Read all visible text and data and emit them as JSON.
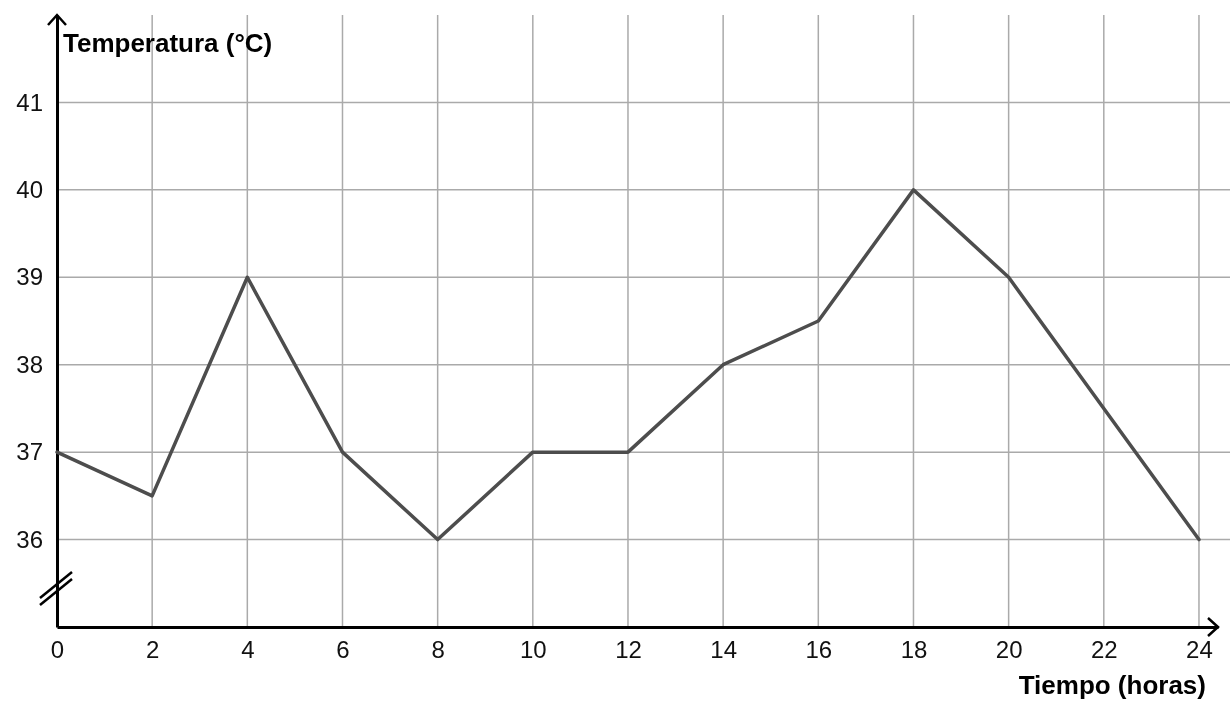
{
  "chart_data": {
    "type": "line",
    "xlabel": "Tiempo (horas)",
    "ylabel": "Temperatura (°C)",
    "x": [
      0,
      2,
      4,
      6,
      8,
      10,
      12,
      14,
      16,
      18,
      20,
      22,
      24
    ],
    "series": [
      {
        "color": "#4d4d4d",
        "values": [
          37,
          36.5,
          39,
          37,
          36,
          37,
          37,
          38,
          38.5,
          40,
          39,
          37.5,
          36
        ]
      }
    ],
    "xlim": [
      0,
      24.4
    ],
    "ylim": [
      35,
      42
    ],
    "xticks": [
      0,
      2,
      4,
      6,
      8,
      10,
      12,
      14,
      16,
      18,
      20,
      22,
      24
    ],
    "yticks": [
      36,
      37,
      38,
      39,
      40,
      41
    ],
    "grid": true,
    "marker": "none",
    "line_style": "solid"
  }
}
